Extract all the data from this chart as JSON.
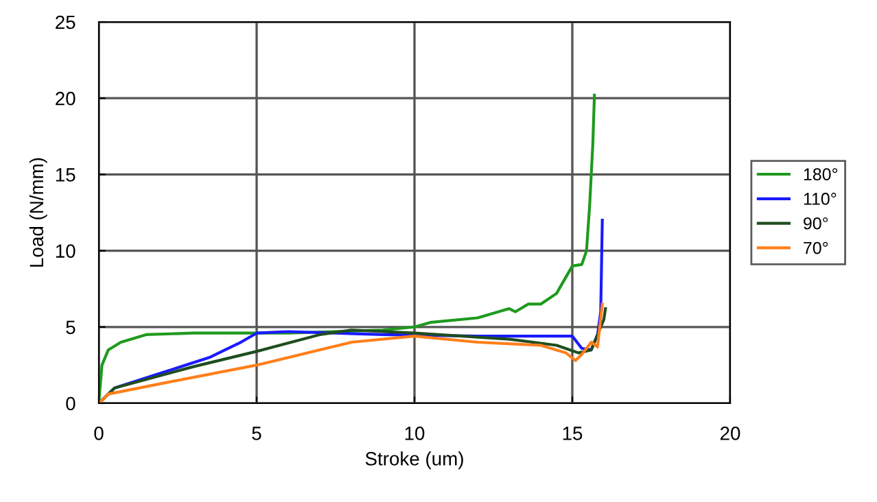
{
  "chart_data": {
    "type": "line",
    "xlabel": "Stroke (um)",
    "ylabel": "Load (N/mm)",
    "xlim": [
      0,
      20
    ],
    "ylim": [
      0,
      25
    ],
    "xticks": [
      0,
      5,
      10,
      15,
      20
    ],
    "yticks": [
      0,
      5,
      10,
      15,
      20,
      25
    ],
    "grid": true,
    "legend": "right",
    "marker": "none",
    "line_style": "solid",
    "series": [
      {
        "name": "180°",
        "color": "#1e9a1e",
        "x": [
          0,
          0.1,
          0.3,
          0.7,
          1.5,
          3,
          6,
          9,
          10,
          10.5,
          12,
          12.5,
          13,
          13.2,
          13.6,
          14,
          14.5,
          15,
          15.3,
          15.45,
          15.55,
          15.65,
          15.7
        ],
        "values": [
          0,
          2.5,
          3.5,
          4,
          4.5,
          4.6,
          4.6,
          4.8,
          5,
          5.3,
          5.6,
          5.9,
          6.2,
          6.0,
          6.5,
          6.5,
          7.2,
          9.0,
          9.1,
          10,
          13,
          17,
          20.2
        ]
      },
      {
        "name": "110°",
        "color": "#1a1aff",
        "x": [
          0,
          0.5,
          2,
          3.5,
          4.5,
          5,
          6,
          9,
          12,
          15,
          15.3,
          15.6,
          15.8,
          15.9,
          15.95
        ],
        "values": [
          0,
          1,
          2,
          3,
          4,
          4.6,
          4.7,
          4.5,
          4.4,
          4.4,
          3.6,
          3.5,
          4.5,
          6,
          12
        ]
      },
      {
        "name": "90°",
        "color": "#1f4d1f",
        "x": [
          0,
          0.5,
          3,
          5,
          7,
          8,
          10,
          13,
          14.5,
          15.2,
          15.6,
          16,
          16.05
        ],
        "values": [
          0,
          1,
          2.4,
          3.4,
          4.5,
          4.8,
          4.6,
          4.2,
          3.8,
          3.3,
          3.5,
          5.5,
          6.2
        ]
      },
      {
        "name": "70°",
        "color": "#ff7f1a",
        "x": [
          0,
          0.3,
          2,
          5,
          8,
          10,
          12,
          14,
          14.8,
          15.1,
          15.3,
          15.6,
          15.8,
          15.95
        ],
        "values": [
          0,
          0.6,
          1.3,
          2.5,
          4,
          4.4,
          4.0,
          3.8,
          3.3,
          2.8,
          3.2,
          4,
          3.7,
          6.5
        ]
      }
    ]
  }
}
